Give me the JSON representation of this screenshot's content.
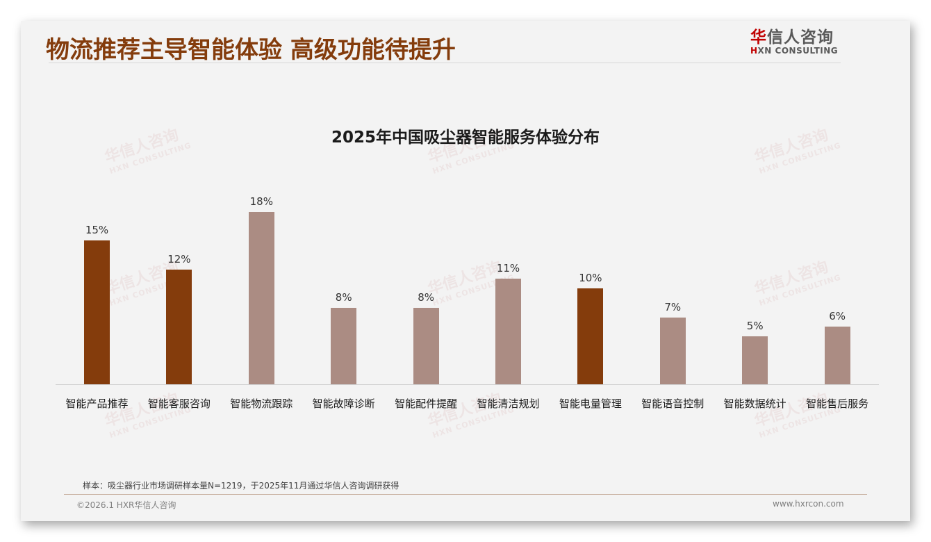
{
  "header": {
    "title": "物流推荐主导智能体验 高级功能待提升",
    "logo_cn_first": "华",
    "logo_cn_rest": "信人咨询",
    "logo_en_first": "H",
    "logo_en_rest": "XN CONSULTING"
  },
  "watermark": {
    "cn": "华信人咨询",
    "en": "HXN CONSULTING"
  },
  "colors": {
    "title": "#843c0c",
    "bar_highlight": "#843c0c",
    "bar_normal": "#ab8c83",
    "logo_red": "#c00000"
  },
  "chart_data": {
    "type": "bar",
    "title": "2025年中国吸尘器智能服务体验分布",
    "xlabel": "",
    "ylabel": "",
    "ylim": [
      0,
      20
    ],
    "grid": false,
    "legend": null,
    "categories": [
      "智能产品推荐",
      "智能客服咨询",
      "智能物流跟踪",
      "智能故障诊断",
      "智能配件提醒",
      "智能清洁规划",
      "智能电量管理",
      "智能语音控制",
      "智能数据统计",
      "智能售后服务"
    ],
    "values": [
      15,
      12,
      18,
      8,
      8,
      11,
      10,
      7,
      5,
      6
    ],
    "value_labels": [
      "15%",
      "12%",
      "18%",
      "8%",
      "8%",
      "11%",
      "10%",
      "7%",
      "5%",
      "6%"
    ],
    "highlighted": [
      true,
      true,
      false,
      false,
      false,
      false,
      true,
      false,
      false,
      false
    ],
    "unit": "%"
  },
  "footer": {
    "note": "样本：吸尘器行业市场调研样本量N=1219，于2025年11月通过华信人咨询调研获得",
    "copyright": "©2026.1 HXR华信人咨询",
    "website": "www.hxrcon.com"
  }
}
